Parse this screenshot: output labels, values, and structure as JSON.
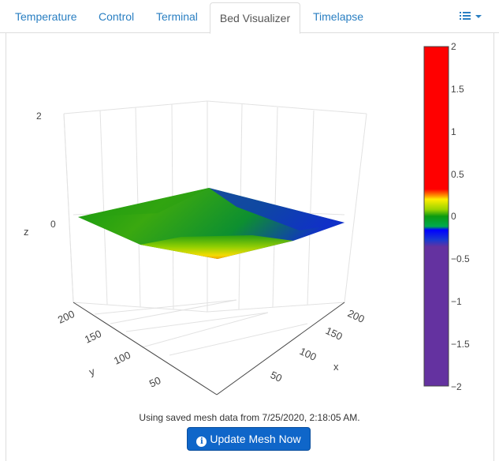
{
  "tabs": [
    {
      "label": "Temperature"
    },
    {
      "label": "Control"
    },
    {
      "label": "Terminal"
    },
    {
      "label": "Bed Visualizer",
      "active": true
    },
    {
      "label": "Timelapse"
    }
  ],
  "menu_icon": "list-icon",
  "chart": {
    "axes": {
      "z": {
        "label": "z",
        "ticks": [
          "2",
          "0"
        ]
      },
      "y": {
        "label": "y",
        "ticks": [
          "200",
          "150",
          "100",
          "50"
        ]
      },
      "x": {
        "label": "x",
        "ticks": [
          "200",
          "150",
          "100",
          "50"
        ]
      }
    },
    "colorbar": {
      "ticks": [
        "2",
        "1.5",
        "1",
        "0.5",
        "0",
        "−0.5",
        "−1",
        "−1.5",
        "−2"
      ],
      "colors": {
        "high": "#ff0000",
        "warm": "#ffcc00",
        "mid": "#7bd000",
        "zero": "#0a9a10",
        "low": "#0000ff",
        "min": "#6432a0"
      }
    }
  },
  "chart_data": {
    "type": "surface",
    "x": [
      0,
      220
    ],
    "y": [
      0,
      220
    ],
    "z": [
      [
        -0.3,
        0.05
      ],
      [
        0.1,
        0.05
      ]
    ],
    "zlim": [
      -2,
      2
    ]
  },
  "status_text": "Using saved mesh data from 7/25/2020, 2:18:05 AM.",
  "update_button": {
    "label": "Update Mesh Now",
    "icon": "info-icon"
  }
}
